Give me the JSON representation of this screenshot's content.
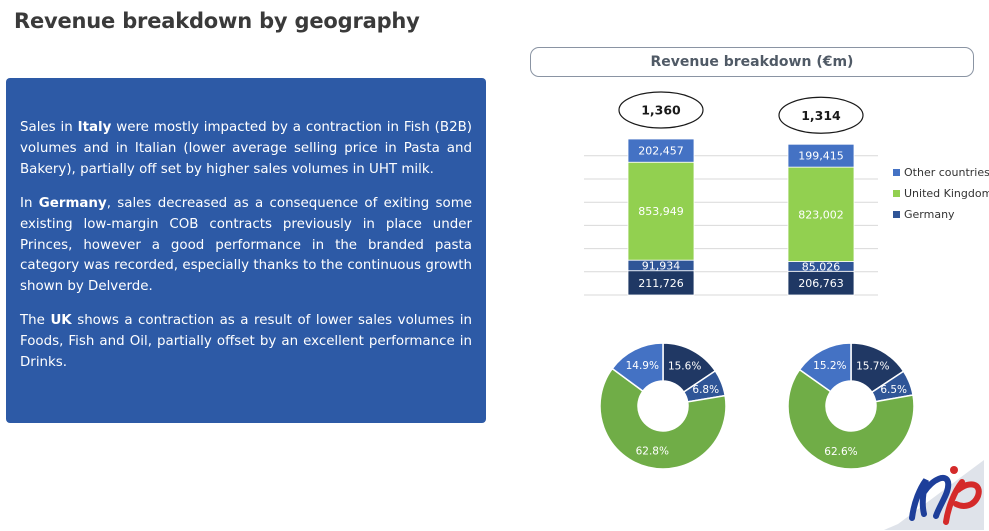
{
  "page": {
    "title": "Revenue breakdown by geography"
  },
  "commentary": {
    "italy": {
      "pre": "Sales in ",
      "bold": "Italy",
      "post": " were mostly impacted by a contraction in Fish (B2B) volumes and in Italian (lower average selling price in Pasta and Bakery), partially off set by higher sales volumes in UHT milk."
    },
    "germany": {
      "pre": "In ",
      "bold": "Germany",
      "post": ", sales decreased as a consequence of exiting some existing  low-margin COB contracts previously in place under Princes, however a good performance in the branded pasta category was recorded, especially thanks to the continuous growth shown by Delverde."
    },
    "uk": {
      "pre": "The ",
      "bold": "UK",
      "post": " shows a contraction as a result of lower sales volumes in Foods, Fish and Oil, partially offset by an excellent performance in Drinks."
    }
  },
  "chart_title": "Revenue breakdown (€m)",
  "colors": {
    "other": "#4472c4",
    "uk": "#92d050",
    "germany": "#2f5597",
    "italy": "#1f3864",
    "pie_uk": "#70ad47",
    "pie_germany": "#2f5597",
    "pie_italy": "#203864",
    "pie_other": "#4472c4"
  },
  "chart_data": [
    {
      "type": "bar",
      "stacked": true,
      "categories": [
        "",
        ""
      ],
      "totals": [
        "1,360",
        "1,314"
      ],
      "series": [
        {
          "key": "unlabeled",
          "values": [
            211.726,
            206.763
          ],
          "labels": [
            "211,726",
            "206,763"
          ],
          "color": "#1f3864"
        },
        {
          "key": "germany",
          "name": "Germany",
          "values": [
            91.934,
            85.026
          ],
          "labels": [
            "91,934",
            "85,026"
          ],
          "color": "#2f5597"
        },
        {
          "key": "uk",
          "name": "United Kingdom",
          "values": [
            853.949,
            823.002
          ],
          "labels": [
            "853,949",
            "823,002"
          ],
          "color": "#92d050"
        },
        {
          "key": "other",
          "name": "Other countries",
          "values": [
            202.457,
            199.415
          ],
          "labels": [
            "202,457",
            "199,415"
          ],
          "color": "#4472c4"
        }
      ],
      "legend": [
        {
          "label": "Other countries",
          "color": "#4472c4"
        },
        {
          "label": "United Kingdom",
          "color": "#92d050"
        },
        {
          "label": "Germany",
          "color": "#2f5597"
        }
      ],
      "legend_position": "right",
      "ylim": [
        0,
        1360
      ],
      "grid": true
    },
    {
      "type": "pie",
      "donut": true,
      "slices": [
        {
          "value": 15.6,
          "label": "15.6%",
          "color": "#203864"
        },
        {
          "value": 6.8,
          "label": "6.8%",
          "color": "#2f5597"
        },
        {
          "value": 62.8,
          "label": "62.8%",
          "color": "#70ad47"
        },
        {
          "value": 14.9,
          "label": "14.9%",
          "color": "#4472c4"
        }
      ]
    },
    {
      "type": "pie",
      "donut": true,
      "slices": [
        {
          "value": 15.7,
          "label": "15.7%",
          "color": "#203864"
        },
        {
          "value": 6.5,
          "label": "6.5%",
          "color": "#2f5597"
        },
        {
          "value": 62.6,
          "label": "62.6%",
          "color": "#70ad47"
        },
        {
          "value": 15.2,
          "label": "15.2%",
          "color": "#4472c4"
        }
      ]
    }
  ],
  "logo": {
    "name": "np-logo-icon"
  }
}
